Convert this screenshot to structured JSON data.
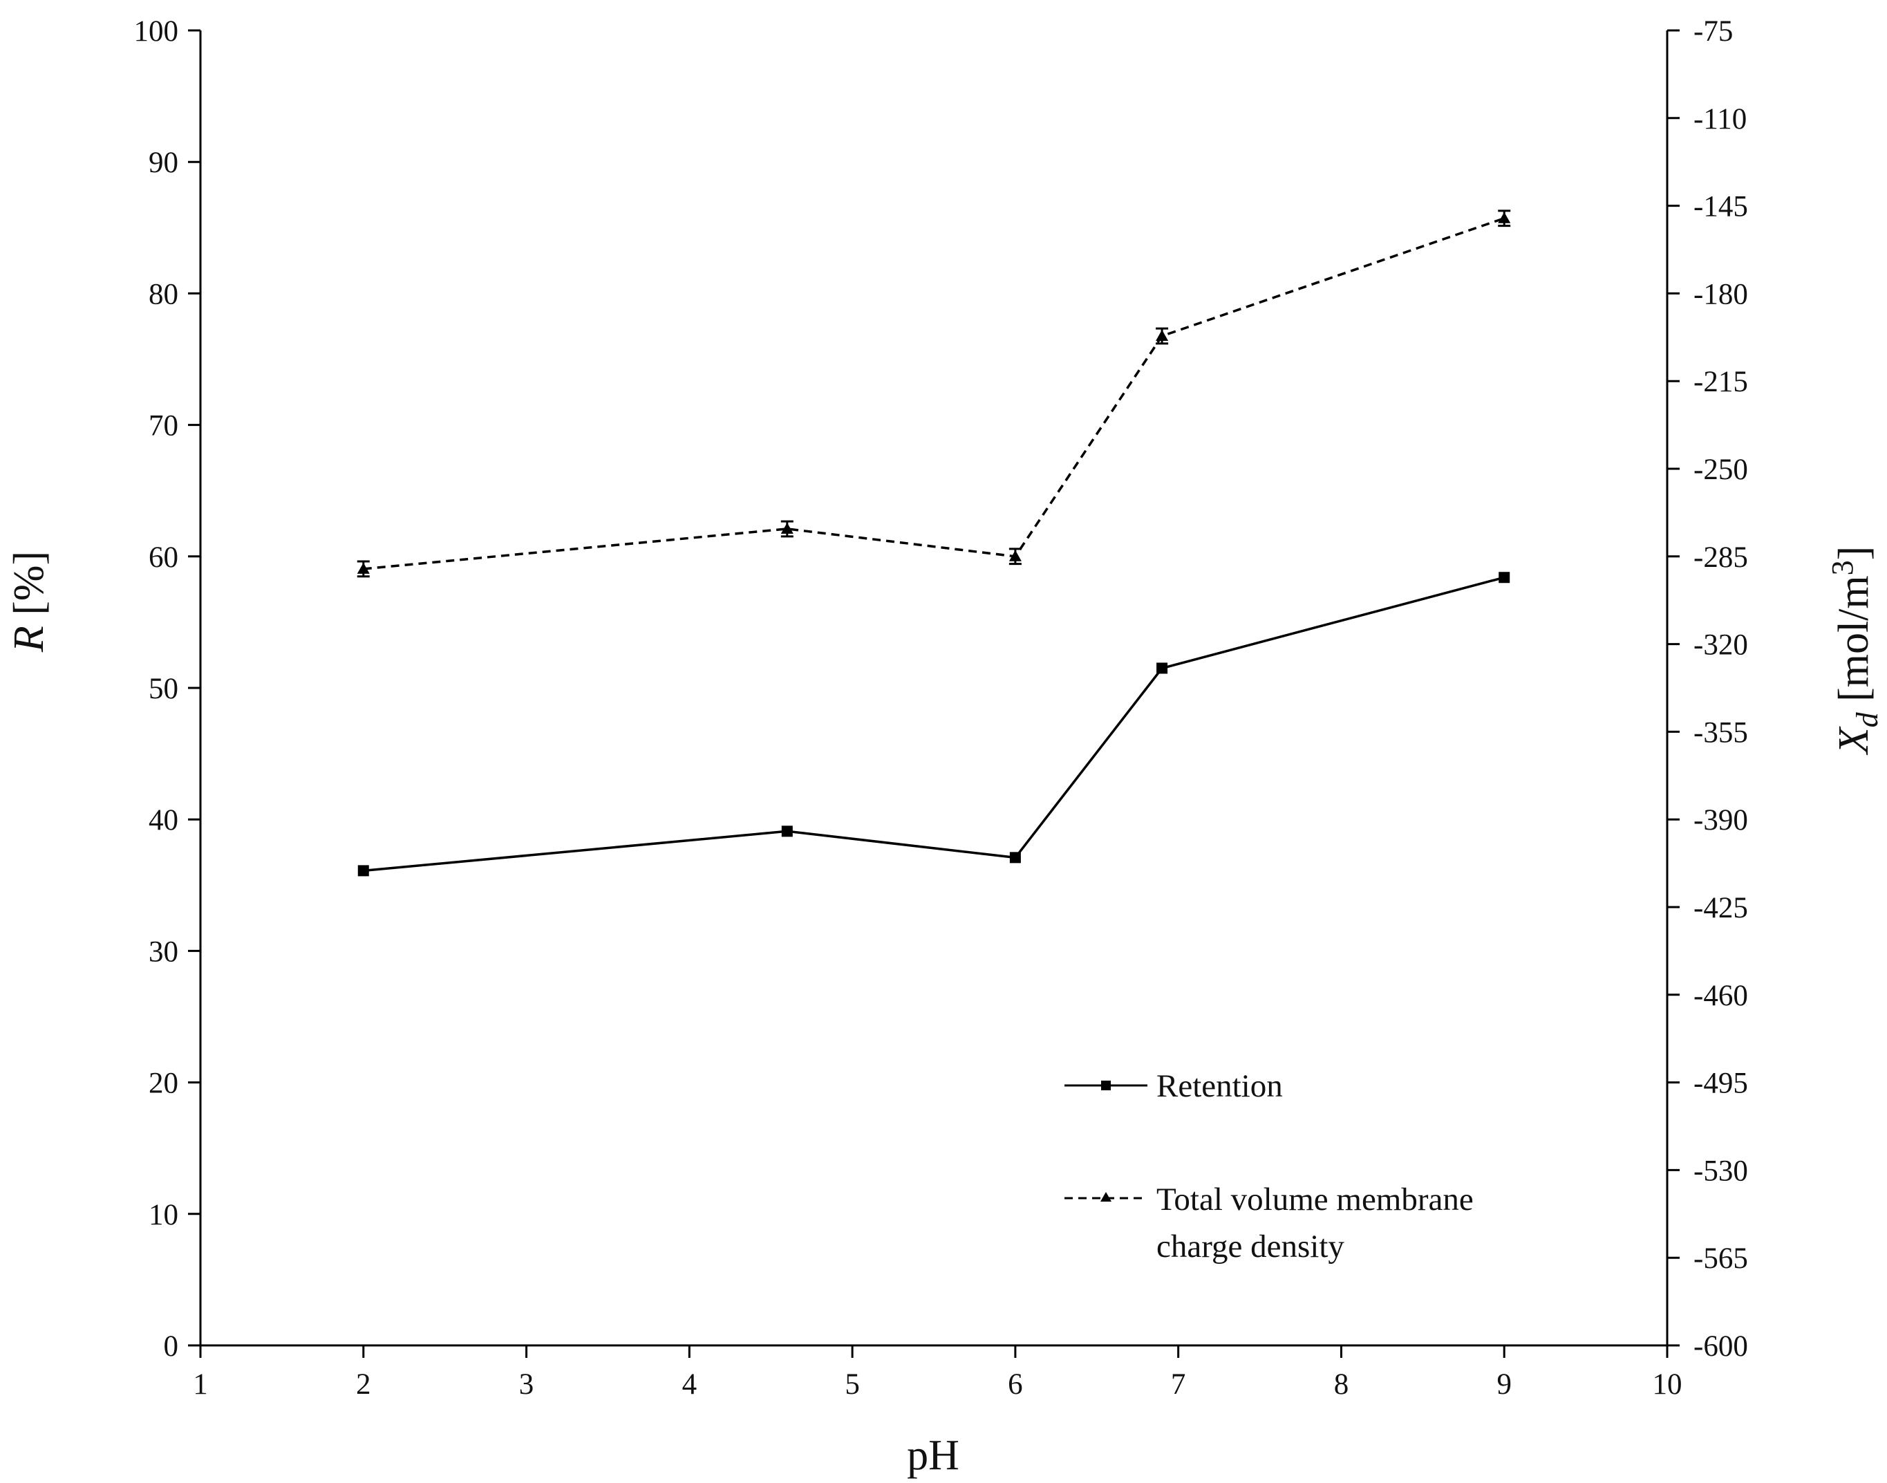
{
  "chart_data": {
    "type": "line",
    "xlabel": "pH",
    "ylabel": {
      "italic": "R",
      "rest": " [%]"
    },
    "y2label": {
      "italic": "X",
      "sub": "d",
      "rest": " [mol/m",
      "sup": "3",
      "close": "]"
    },
    "xlim": [
      1,
      10
    ],
    "xticks": [
      "1",
      "2",
      "3",
      "4",
      "5",
      "6",
      "7",
      "8",
      "9",
      "10"
    ],
    "ylim": [
      0,
      100
    ],
    "yticks": [
      "0",
      "10",
      "20",
      "30",
      "40",
      "50",
      "60",
      "70",
      "80",
      "90",
      "100"
    ],
    "y2lim": [
      -600,
      -75
    ],
    "y2ticks": [
      "-600",
      "-565",
      "-530",
      "-495",
      "-460",
      "-425",
      "-390",
      "-355",
      "-320",
      "-285",
      "-250",
      "-215",
      "-180",
      "-145",
      "-110",
      "-75"
    ],
    "grid": false,
    "legend_position": "lower-right",
    "series": [
      {
        "name": "Retention",
        "axis": "left",
        "marker": "square",
        "linestyle": "solid",
        "x": [
          2,
          4.6,
          6,
          6.9,
          9
        ],
        "y": [
          36.1,
          39.1,
          37.1,
          51.5,
          58.4
        ]
      },
      {
        "name_lines": [
          "Total volume membrane",
          "charge density"
        ],
        "axis": "right",
        "marker": "triangle",
        "linestyle": "dashed",
        "x": [
          2,
          4.6,
          6,
          6.9,
          9
        ],
        "y": [
          -290,
          -274,
          -285,
          -197,
          -150
        ],
        "error": [
          3,
          3,
          3,
          3,
          3
        ]
      }
    ]
  },
  "style": {
    "line_color": "#000000",
    "axis_color": "#000000"
  }
}
